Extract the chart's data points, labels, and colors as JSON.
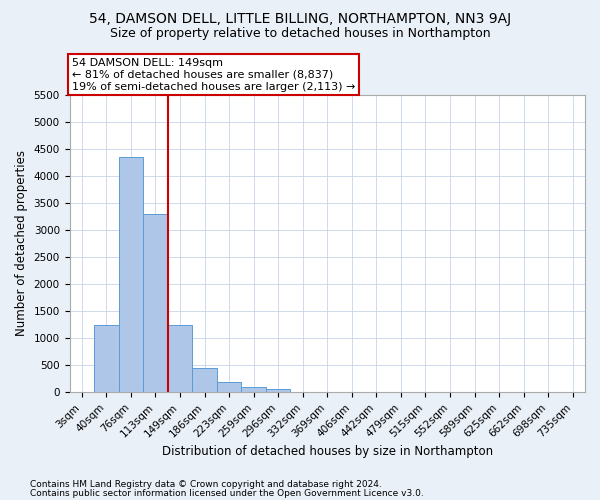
{
  "title1": "54, DAMSON DELL, LITTLE BILLING, NORTHAMPTON, NN3 9AJ",
  "title2": "Size of property relative to detached houses in Northampton",
  "xlabel": "Distribution of detached houses by size in Northampton",
  "ylabel": "Number of detached properties",
  "footer1": "Contains HM Land Registry data © Crown copyright and database right 2024.",
  "footer2": "Contains public sector information licensed under the Open Government Licence v3.0.",
  "annotation_line1": "54 DAMSON DELL: 149sqm",
  "annotation_line2": "← 81% of detached houses are smaller (8,837)",
  "annotation_line3": "19% of semi-detached houses are larger (2,113) →",
  "bar_labels": [
    "3sqm",
    "40sqm",
    "76sqm",
    "113sqm",
    "149sqm",
    "186sqm",
    "223sqm",
    "259sqm",
    "296sqm",
    "332sqm",
    "369sqm",
    "406sqm",
    "442sqm",
    "479sqm",
    "515sqm",
    "552sqm",
    "589sqm",
    "625sqm",
    "662sqm",
    "698sqm",
    "735sqm"
  ],
  "bar_values": [
    0,
    1250,
    4350,
    3300,
    1250,
    450,
    200,
    90,
    70,
    0,
    0,
    0,
    0,
    0,
    0,
    0,
    0,
    0,
    0,
    0,
    0
  ],
  "bar_color": "#aec6e8",
  "bar_edge_color": "#5b9bd5",
  "vline_color": "#cc0000",
  "vline_x": 3.5,
  "ylim": [
    0,
    5500
  ],
  "yticks": [
    0,
    500,
    1000,
    1500,
    2000,
    2500,
    3000,
    3500,
    4000,
    4500,
    5000,
    5500
  ],
  "bg_color": "#eaf0f8",
  "plot_bg_color": "#ffffff",
  "grid_color": "#c8d4e8",
  "title1_fontsize": 10,
  "title2_fontsize": 9,
  "xlabel_fontsize": 8.5,
  "ylabel_fontsize": 8.5,
  "tick_fontsize": 7.5,
  "annotation_fontsize": 8,
  "footer_fontsize": 6.5
}
